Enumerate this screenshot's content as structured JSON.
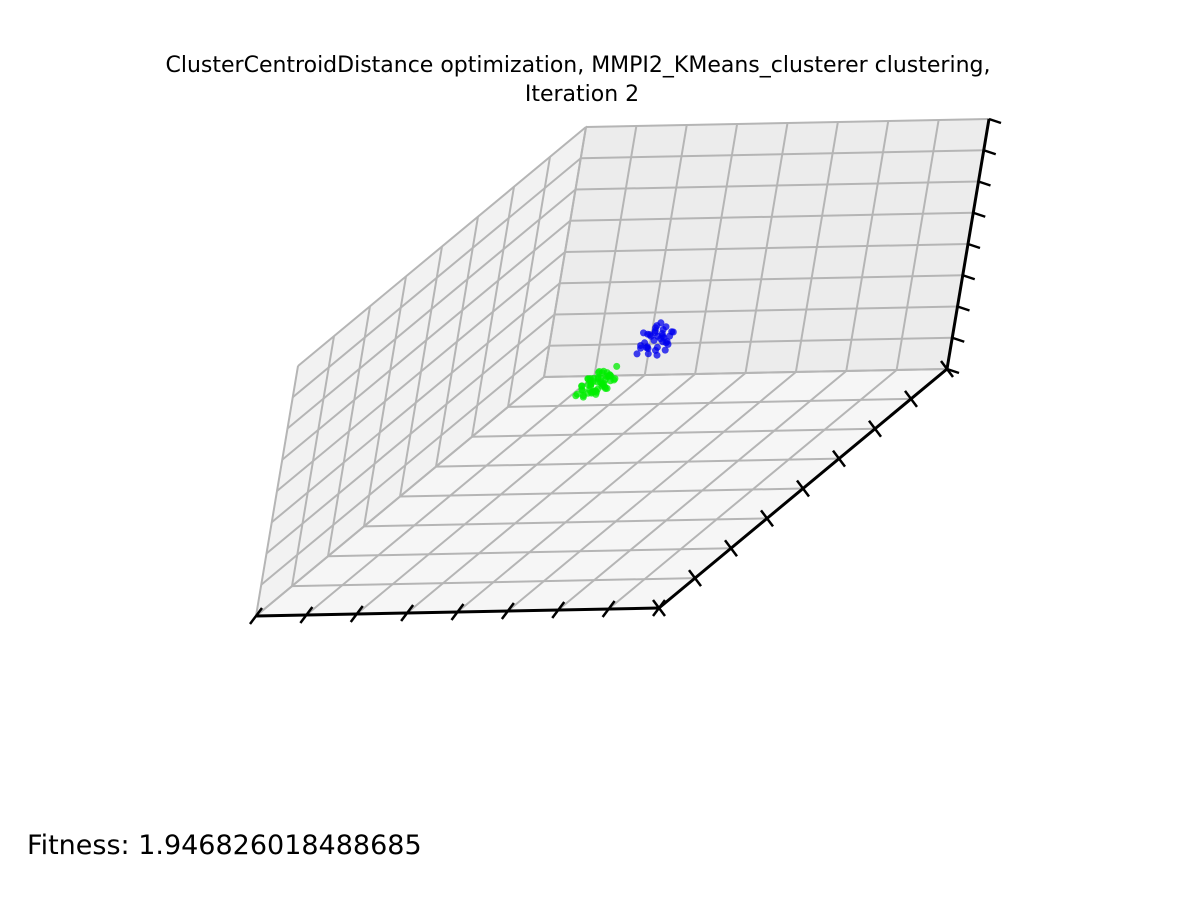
{
  "chart_data": {
    "type": "scatter",
    "projection": "3d",
    "title": "ClusterCentroidDistance optimization, MMPI2_KMeans_clusterer clustering,",
    "subtitle": "Iteration 2",
    "annotation": "Fitness: 1.946826018488685",
    "grid": true,
    "tick_labels_shown": false,
    "series": [
      {
        "color": "#0000ee",
        "points": [
          [
            -0.16,
            0.08,
            0.05
          ],
          [
            -0.12,
            0.06,
            0.1
          ],
          [
            -0.14,
            0.02,
            0.03
          ],
          [
            -0.1,
            0.1,
            0.0
          ],
          [
            -0.2,
            0.05,
            0.06
          ],
          [
            -0.08,
            0.04,
            0.12
          ],
          [
            -0.13,
            0.12,
            0.08
          ],
          [
            -0.18,
            0.0,
            -0.02
          ],
          [
            -0.06,
            0.08,
            0.05
          ],
          [
            -0.11,
            0.03,
            0.16
          ],
          [
            -0.15,
            0.09,
            0.18
          ],
          [
            -0.09,
            0.11,
            0.14
          ],
          [
            -0.24,
            0.06,
            0.02
          ],
          [
            -0.26,
            0.02,
            -0.01
          ],
          [
            -0.12,
            0.0,
            0.04
          ],
          [
            -0.07,
            0.06,
            0.09
          ],
          [
            -0.17,
            0.11,
            0.12
          ],
          [
            -0.14,
            0.05,
            0.2
          ],
          [
            -0.1,
            0.07,
            0.22
          ],
          [
            -0.05,
            0.03,
            0.06
          ],
          [
            -0.19,
            0.09,
            0.0
          ],
          [
            -0.22,
            -0.02,
            0.04
          ],
          [
            -0.13,
            0.07,
            0.01
          ],
          [
            -0.08,
            0.1,
            0.17
          ],
          [
            -0.16,
            0.01,
            0.11
          ],
          [
            -0.11,
            0.13,
            0.03
          ],
          [
            -0.15,
            0.04,
            0.15
          ],
          [
            -0.09,
            0.02,
            0.19
          ],
          [
            -0.2,
            0.1,
            0.09
          ],
          [
            -0.12,
            0.08,
            0.24
          ],
          [
            -0.06,
            0.12,
            0.1
          ],
          [
            -0.18,
            0.06,
            0.13
          ],
          [
            -0.14,
            0.11,
            0.06
          ],
          [
            -0.1,
            0.01,
            0.08
          ],
          [
            -0.07,
            0.09,
            0.21
          ],
          [
            -0.21,
            0.04,
            0.07
          ]
        ]
      },
      {
        "color": "#00ee00",
        "points": [
          [
            0.04,
            -0.04,
            -0.03
          ],
          [
            0.06,
            -0.02,
            0.0
          ],
          [
            0.02,
            -0.06,
            -0.02
          ],
          [
            0.08,
            -0.03,
            -0.05
          ],
          [
            0.05,
            -0.08,
            -0.04
          ],
          [
            0.1,
            -0.05,
            -0.02
          ],
          [
            0.03,
            -0.01,
            -0.06
          ],
          [
            0.07,
            -0.07,
            -0.01
          ],
          [
            0.12,
            -0.04,
            -0.07
          ],
          [
            0.01,
            -0.09,
            -0.03
          ],
          [
            0.09,
            -0.1,
            -0.05
          ],
          [
            0.06,
            -0.05,
            -0.09
          ],
          [
            0.14,
            -0.02,
            -0.04
          ],
          [
            0.0,
            -0.03,
            0.01
          ],
          [
            0.11,
            -0.08,
            0.0
          ],
          [
            0.04,
            -0.11,
            -0.07
          ],
          [
            0.08,
            0.0,
            -0.03
          ],
          [
            0.13,
            -0.07,
            -0.08
          ],
          [
            0.02,
            -0.02,
            -0.08
          ],
          [
            0.07,
            -0.12,
            -0.02
          ],
          [
            0.15,
            -0.05,
            0.01
          ],
          [
            0.05,
            -0.06,
            0.02
          ],
          [
            0.1,
            -0.01,
            -0.06
          ],
          [
            0.03,
            -0.07,
            -0.1
          ],
          [
            0.09,
            -0.09,
            -0.09
          ],
          [
            0.16,
            -0.08,
            -0.03
          ],
          [
            0.06,
            -0.03,
            -0.11
          ],
          [
            0.12,
            -0.11,
            -0.06
          ],
          [
            0.01,
            -0.05,
            -0.05
          ],
          [
            0.08,
            -0.06,
            -0.12
          ],
          [
            0.14,
            -0.1,
            -0.01
          ],
          [
            0.04,
            -0.09,
            0.0
          ],
          [
            0.11,
            -0.03,
            0.02
          ],
          [
            0.07,
            -0.04,
            -0.07
          ],
          [
            0.18,
            -0.06,
            -0.05
          ],
          [
            0.05,
            -0.13,
            -0.04
          ],
          [
            0.1,
            -0.07,
            -0.1
          ],
          [
            0.02,
            -0.1,
            -0.01
          ],
          [
            0.13,
            -0.03,
            -0.09
          ],
          [
            0.06,
            -0.08,
            -0.13
          ],
          [
            0.09,
            -0.02,
            -0.01
          ],
          [
            0.16,
            -0.11,
            -0.07
          ],
          [
            0.03,
            -0.04,
            -0.04
          ],
          [
            0.12,
            -0.06,
            0.03
          ],
          [
            0.07,
            -0.1,
            -0.08
          ],
          [
            0.2,
            -0.08,
            -0.02
          ],
          [
            0.0,
            -0.07,
            -0.07
          ],
          [
            0.11,
            -0.12,
            -0.04
          ],
          [
            0.08,
            -0.01,
            -0.09
          ],
          [
            0.15,
            -0.04,
            -0.06
          ],
          [
            0.05,
            -0.02,
            -0.02
          ],
          [
            0.1,
            -0.09,
            0.01
          ],
          [
            0.04,
            -0.12,
            -0.09
          ],
          [
            0.13,
            -0.09,
            -0.11
          ],
          [
            0.17,
            -0.02,
            -0.03
          ],
          [
            0.06,
            -0.06,
            -0.06
          ]
        ]
      }
    ]
  }
}
